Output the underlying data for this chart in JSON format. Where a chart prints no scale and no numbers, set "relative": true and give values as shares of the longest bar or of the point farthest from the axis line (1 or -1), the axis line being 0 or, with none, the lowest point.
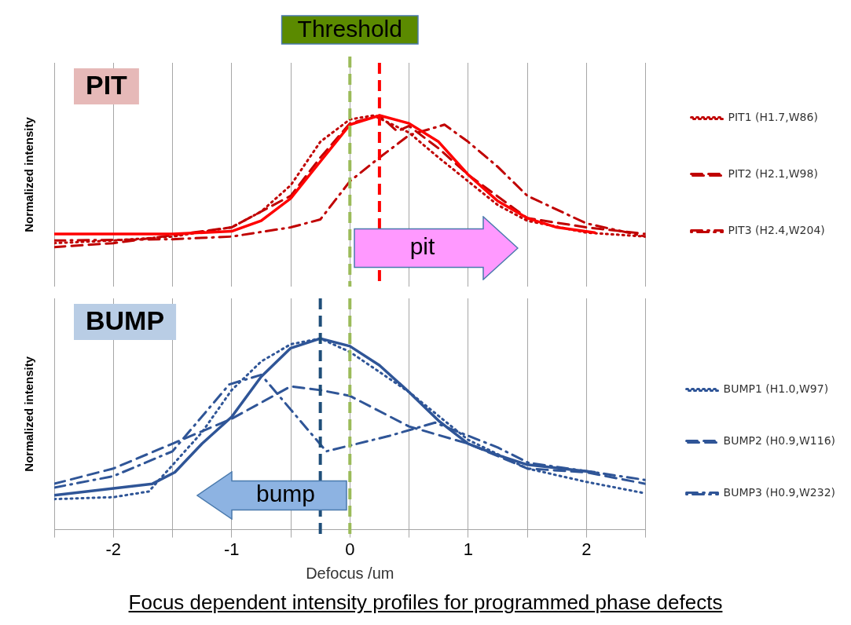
{
  "chart_data": [
    {
      "type": "line",
      "relative": true,
      "ylabel": "Normalized intensity",
      "xlim": [
        -2.5,
        2.5
      ],
      "xticks": [
        {
          "value": -2.5,
          "label": null
        },
        -2,
        {
          "value": -1.5,
          "label": null
        },
        -1,
        {
          "value": -0.5,
          "label": null
        },
        0,
        {
          "value": 0.5,
          "label": null
        },
        1,
        {
          "value": 1.5,
          "label": null
        },
        2,
        {
          "value": 2.5,
          "label": null
        }
      ],
      "tick_labels": false,
      "grid": "x",
      "legend": "right",
      "marker": "none",
      "series": [
        {
          "color": "#ff0000",
          "line_style": "solid",
          "x": [
            -2.5,
            -1.5,
            -1.0,
            -0.75,
            -0.5,
            -0.25,
            0,
            0.25,
            0.5,
            0.75,
            1.0,
            1.25,
            1.5,
            1.75,
            2.07
          ],
          "values": [
            0.1,
            0.1,
            0.12,
            0.2,
            0.37,
            0.65,
            0.93,
            1.0,
            0.94,
            0.8,
            0.55,
            0.35,
            0.22,
            0.15,
            0.11
          ]
        },
        {
          "name": "PIT1 (H1.7,W86)",
          "color": "#c00000",
          "line_style": "dotted",
          "x": [
            -2.5,
            -2,
            -1.5,
            -1,
            -0.75,
            -0.5,
            -0.25,
            0,
            0.2,
            0.5,
            0.75,
            1,
            1.25,
            1.5,
            2,
            2.5
          ],
          "values": [
            0.03,
            0.05,
            0.08,
            0.15,
            0.27,
            0.47,
            0.8,
            0.97,
            1.0,
            0.87,
            0.68,
            0.5,
            0.32,
            0.2,
            0.11,
            0.08
          ]
        },
        {
          "name": "PIT2 (H2.1,W98)",
          "color": "#c00000",
          "line_style": "dashed",
          "x": [
            -2.5,
            -2,
            -1.5,
            -1,
            -0.5,
            -0.25,
            0,
            0.25,
            0.4,
            0.5,
            0.75,
            1,
            1.5,
            2,
            2.5
          ],
          "values": [
            0,
            0.03,
            0.09,
            0.15,
            0.39,
            0.68,
            0.94,
            1.0,
            0.88,
            0.92,
            0.75,
            0.55,
            0.22,
            0.15,
            0.1
          ]
        },
        {
          "name": "PIT3 (H2.4,W204)",
          "color": "#c00000",
          "line_style": "dashdot",
          "x": [
            -2.5,
            -1.5,
            -1,
            -0.5,
            -0.25,
            0,
            0.25,
            0.5,
            0.8,
            1,
            1.25,
            1.5,
            2,
            2.5
          ],
          "values": [
            0.05,
            0.06,
            0.08,
            0.15,
            0.21,
            0.5,
            0.68,
            0.85,
            0.93,
            0.8,
            0.61,
            0.39,
            0.18,
            0.08
          ]
        }
      ],
      "ref_lines": [
        {
          "axis": "x",
          "value": 0,
          "label": "Threshold",
          "color": "#9bbb59",
          "line_style": "dashed"
        },
        {
          "axis": "x",
          "value": 0.25,
          "color": "#ff0000",
          "line_style": "dashed"
        }
      ],
      "annotations": [
        "PIT",
        "pit"
      ]
    },
    {
      "type": "line",
      "relative": true,
      "xlabel": "Defocus /um",
      "ylabel": "Normalized intensity",
      "xlim": [
        -2.5,
        2.5
      ],
      "xticks": [
        {
          "value": -2.5,
          "label": null
        },
        -2,
        {
          "value": -1.5,
          "label": null
        },
        -1,
        {
          "value": -0.5,
          "label": null
        },
        0,
        {
          "value": 0.5,
          "label": null
        },
        1,
        {
          "value": 1.5,
          "label": null
        },
        2,
        {
          "value": 2.5,
          "label": null
        }
      ],
      "tick_labels": "x",
      "grid": "x",
      "legend": "right",
      "marker": "none",
      "series": [
        {
          "color": "#2f5597",
          "line_style": "solid",
          "x": [
            -2.5,
            -1.67,
            -1.48,
            -1.25,
            -1.0,
            -0.75,
            -0.5,
            -0.25,
            0,
            0.25,
            0.5,
            0.75,
            1.0,
            1.25,
            1.5,
            2.07
          ],
          "values": [
            0.18,
            0.24,
            0.3,
            0.45,
            0.59,
            0.8,
            0.95,
            1.0,
            0.96,
            0.86,
            0.72,
            0.57,
            0.45,
            0.39,
            0.34,
            0.3
          ]
        },
        {
          "name": "BUMP1 (H1.0,W97)",
          "color": "#2f5597",
          "line_style": "dotted",
          "x": [
            -2.5,
            -2,
            -1.7,
            -1.25,
            -1,
            -0.75,
            -0.5,
            -0.25,
            0,
            0.5,
            1,
            1.5,
            2,
            2.5
          ],
          "values": [
            0.16,
            0.17,
            0.2,
            0.51,
            0.73,
            0.88,
            0.97,
            1.0,
            0.93,
            0.72,
            0.47,
            0.32,
            0.25,
            0.19
          ]
        },
        {
          "name": "BUMP2 (H0.9,W116)",
          "color": "#2f5597",
          "line_style": "dashed",
          "x": [
            -2.5,
            -2,
            -1.5,
            -1,
            -0.5,
            -0.25,
            0,
            0.5,
            1,
            1.5,
            2,
            2.5
          ],
          "values": [
            0.24,
            0.32,
            0.45,
            0.58,
            0.75,
            0.73,
            0.7,
            0.54,
            0.45,
            0.32,
            0.3,
            0.24
          ]
        },
        {
          "name": "BUMP3 (H0.9,W232)",
          "color": "#2f5597",
          "line_style": "dashdot",
          "x": [
            -2.5,
            -2,
            -1.5,
            -1.02,
            -0.75,
            -0.2,
            0.33,
            0.72,
            1.25,
            1.51,
            2.07,
            2.5
          ],
          "values": [
            0.22,
            0.28,
            0.41,
            0.76,
            0.81,
            0.41,
            0.49,
            0.56,
            0.43,
            0.35,
            0.3,
            0.26
          ]
        }
      ],
      "ref_lines": [
        {
          "axis": "x",
          "value": 0,
          "color": "#9bbb59",
          "line_style": "dashed"
        },
        {
          "axis": "x",
          "value": -0.25,
          "color": "#1f4e79",
          "line_style": "dashed"
        }
      ],
      "annotations": [
        "BUMP",
        "bump",
        "Focus dependent intensity profiles for programmed phase defects"
      ]
    }
  ]
}
